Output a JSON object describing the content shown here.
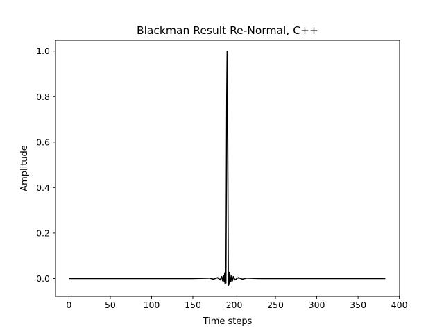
{
  "chart_data": {
    "type": "line",
    "title": "Blackman Result Re-Normal, C++",
    "xlabel": "Time steps",
    "ylabel": "Amplitude",
    "xlim": [
      -16.3,
      400.3
    ],
    "ylim": [
      -0.078,
      1.048
    ],
    "xticks": [
      0,
      50,
      100,
      150,
      200,
      250,
      300,
      350,
      400
    ],
    "yticks": [
      0.0,
      0.2,
      0.4,
      0.6,
      0.8,
      1.0
    ],
    "xtick_labels": [
      "0",
      "50",
      "100",
      "150",
      "200",
      "250",
      "300",
      "350",
      "400"
    ],
    "ytick_labels": [
      "0.0",
      "0.2",
      "0.4",
      "0.6",
      "0.8",
      "1.0"
    ],
    "grid": false,
    "series": [
      {
        "color": "#000000",
        "x": [
          0,
          50,
          100,
          150,
          170,
          175,
          180,
          183,
          185,
          186,
          187,
          188,
          188.5,
          189,
          189.5,
          190,
          190.5,
          191,
          191.5,
          192,
          192.5,
          193,
          193.5,
          194,
          194.5,
          195,
          196,
          197,
          198,
          199,
          201,
          205,
          210,
          215,
          230,
          250,
          300,
          350,
          383
        ],
        "y": [
          0.0,
          0.0,
          0.0,
          0.0,
          0.002,
          -0.003,
          0.004,
          -0.006,
          0.008,
          -0.01,
          0.012,
          -0.015,
          0.025,
          -0.025,
          0.03,
          -0.02,
          0.35,
          0.8,
          1.0,
          0.8,
          0.35,
          -0.03,
          -0.028,
          0.027,
          -0.02,
          0.016,
          -0.014,
          0.012,
          -0.01,
          0.008,
          -0.006,
          0.004,
          -0.003,
          0.002,
          0.0,
          0.0,
          0.0,
          0.0,
          0.0
        ]
      }
    ]
  }
}
